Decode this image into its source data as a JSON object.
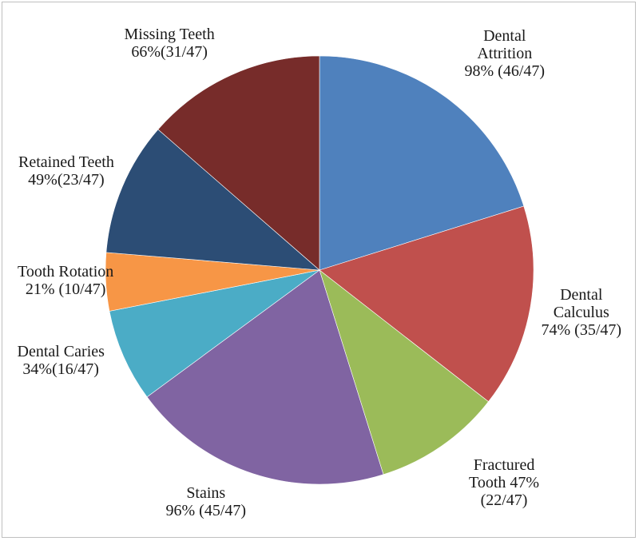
{
  "chart_data": {
    "type": "pie",
    "total": 47,
    "slices": [
      {
        "lines": [
          "Dental",
          "Attrition",
          "98% (46/47)"
        ],
        "value": 46,
        "percent": 98,
        "color": "#4F81BD"
      },
      {
        "lines": [
          "Dental",
          "Calculus",
          "74% (35/47)"
        ],
        "value": 35,
        "percent": 74,
        "color": "#C0504D"
      },
      {
        "lines": [
          "Fractured",
          "Tooth 47%",
          "(22/47)"
        ],
        "value": 22,
        "percent": 47,
        "color": "#9BBB59"
      },
      {
        "lines": [
          "Stains",
          "96% (45/47)"
        ],
        "value": 45,
        "percent": 96,
        "color": "#8064A2"
      },
      {
        "lines": [
          "Dental Caries",
          "34%(16/47)"
        ],
        "value": 16,
        "percent": 34,
        "color": "#4BACC6"
      },
      {
        "lines": [
          "Tooth Rotation",
          "21% (10/47)"
        ],
        "value": 10,
        "percent": 21,
        "color": "#F79646"
      },
      {
        "lines": [
          "Retained Teeth",
          "49%(23/47)"
        ],
        "value": 23,
        "percent": 49,
        "color": "#2C4D75"
      },
      {
        "lines": [
          "Missing Teeth",
          "66%(31/47)"
        ],
        "value": 31,
        "percent": 66,
        "color": "#772C2A"
      }
    ]
  }
}
